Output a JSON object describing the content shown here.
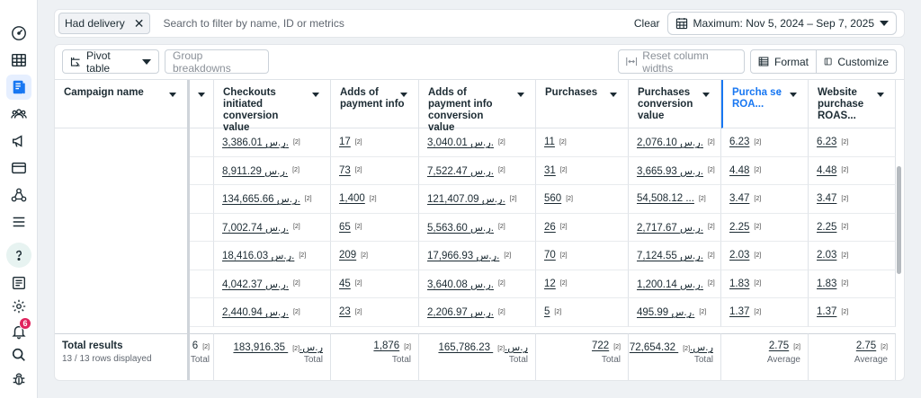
{
  "rail": {
    "notifications_count": "6"
  },
  "filterbar": {
    "chip_label": "Had delivery",
    "search_placeholder": "Search to filter by name, ID or metrics",
    "clear_label": "Clear",
    "date_range": "Maximum: Nov 5, 2024 – Sep 7, 2025"
  },
  "toolbar": {
    "pivot_label": "Pivot table",
    "group_label": "Group breakdowns",
    "reset_label": "Reset column widths",
    "format_label": "Format",
    "customize_label": "Customize"
  },
  "table": {
    "name_header": "Campaign name",
    "headers": [
      "Checkouts initiated conversion value",
      "Adds of payment info",
      "Adds of payment info conversion value",
      "Purchases",
      "Purchases conversion value",
      "Purcha se ROA...",
      "Website purchase ROAS..."
    ],
    "footnote": "[2]",
    "rows": [
      [
        "3,386.01 ر.س.",
        "17",
        "3,040.01 ر.س.",
        "11",
        "2,076.10 ر.س.",
        "6.23",
        "6.23"
      ],
      [
        "8,911.29 ر.س.",
        "73",
        "7,522.47 ر.س.",
        "31",
        "3,665.93 ر.س.",
        "4.48",
        "4.48"
      ],
      [
        "134,665.66 ر.س.",
        "1,400",
        "121,407.09 ر.س.",
        "560",
        "54,508.12 ...",
        "3.47",
        "3.47"
      ],
      [
        "7,002.74 ر.س.",
        "65",
        "5,563.60 ر.س.",
        "26",
        "2,717.67 ر.س.",
        "2.25",
        "2.25"
      ],
      [
        "18,416.03 ر.س.",
        "209",
        "17,966.93 ر.س.",
        "70",
        "7,124.55 ر.س.",
        "2.03",
        "2.03"
      ],
      [
        "4,042.37 ر.س.",
        "45",
        "3,640.08 ر.س.",
        "12",
        "1,200.14 ر.س.",
        "1.83",
        "1.83"
      ],
      [
        "2,440.94 ر.س.",
        "23",
        "2,206.97 ر.س.",
        "5",
        "495.99 ر.س.",
        "1.37",
        "1.37"
      ]
    ],
    "totals_label": "Total results",
    "totals_sub": "13 / 13 rows displayed",
    "partial_total": "6",
    "partial_total_label": "Total",
    "totals": [
      {
        "value": "183,916.35 ر.س.",
        "label": "Total"
      },
      {
        "value": "1,876",
        "label": "Total"
      },
      {
        "value": "165,786.23 ر.س.",
        "label": "Total"
      },
      {
        "value": "722",
        "label": "Total"
      },
      {
        "value": "72,654.32 ر.س.",
        "label": "Total"
      },
      {
        "value": "2.75",
        "label": "Average"
      },
      {
        "value": "2.75",
        "label": "Average"
      }
    ]
  }
}
